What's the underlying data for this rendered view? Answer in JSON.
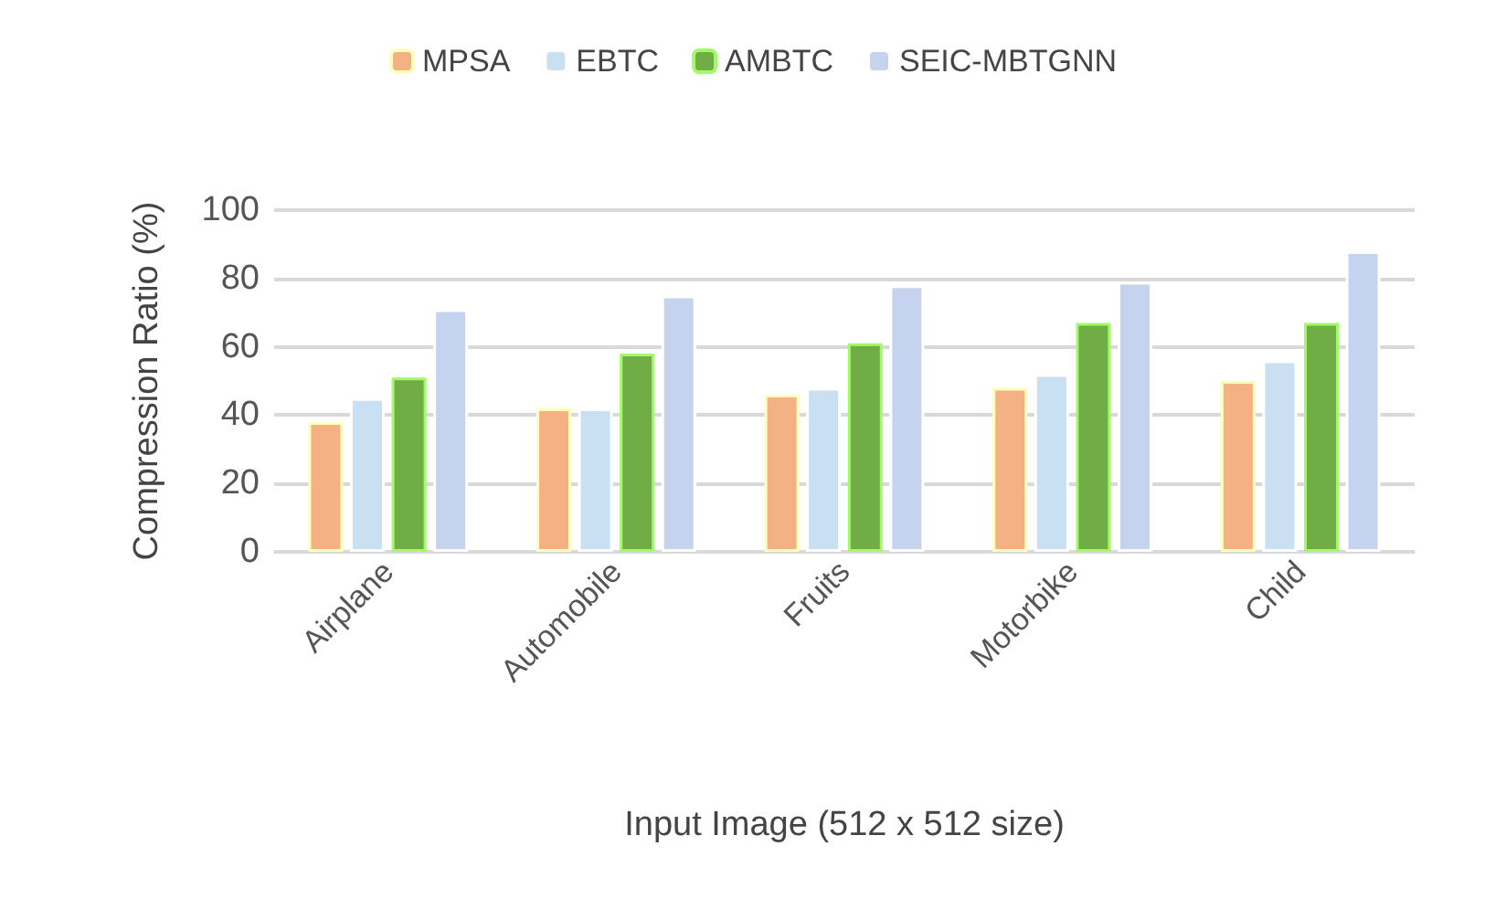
{
  "chart_data": {
    "type": "bar",
    "xlabel": "Input Image (512 x 512 size)",
    "ylabel": "Compression Ratio (%)",
    "categories": [
      "Airplane",
      "Automobile",
      "Fruits",
      "Motorbike",
      "Child"
    ],
    "series": [
      {
        "name": "MPSA",
        "color": "#f4b183",
        "values": [
          38,
          42,
          46,
          48,
          50
        ]
      },
      {
        "name": "EBTC",
        "color": "#c9dff2",
        "values": [
          45,
          42,
          48,
          52,
          56
        ]
      },
      {
        "name": "AMBTC",
        "color": "#70ad47",
        "values": [
          51,
          58,
          61,
          67,
          67
        ]
      },
      {
        "name": "SEIC-MBTGNN",
        "color": "#c5d3ee",
        "values": [
          71,
          75,
          78,
          79,
          88
        ]
      }
    ],
    "ylim": [
      0,
      100
    ],
    "yticks": [
      0,
      20,
      40,
      60,
      80,
      100
    ],
    "grid": "y",
    "legend": "top"
  }
}
